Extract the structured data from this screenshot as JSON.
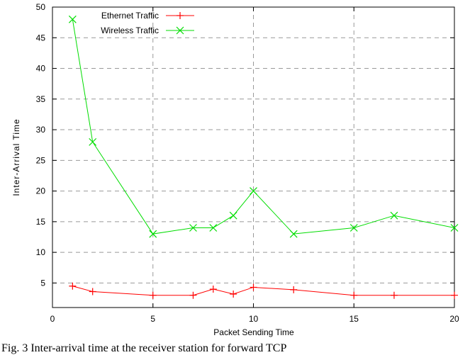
{
  "chart_data": {
    "type": "line",
    "xlabel": "Packet Sending Time",
    "ylabel": "Inter-Arrival Time",
    "xlim": [
      0,
      20
    ],
    "ylim": [
      1,
      50
    ],
    "xticks": [
      0,
      5,
      10,
      15,
      20
    ],
    "yticks": [
      5,
      10,
      15,
      20,
      25,
      30,
      35,
      40,
      45,
      50
    ],
    "grid": true,
    "legend_position": "top-left",
    "series": [
      {
        "name": "Ethernet Traffic",
        "color": "#ff0000",
        "marker": "plus",
        "x": [
          1,
          2,
          5,
          7,
          8,
          9,
          10,
          12,
          15,
          17,
          20
        ],
        "y": [
          4.5,
          3.6,
          3.0,
          3.0,
          4.0,
          3.2,
          4.3,
          3.9,
          3.0,
          3.0,
          3.0
        ]
      },
      {
        "name": "Wireless Traffic",
        "color": "#00dd00",
        "marker": "cross",
        "x": [
          1,
          2,
          5,
          7,
          8,
          9,
          10,
          12,
          15,
          17,
          20
        ],
        "y": [
          48,
          28,
          13,
          14,
          14,
          16,
          20,
          13,
          14,
          16,
          14
        ]
      }
    ]
  },
  "caption": "Fig. 3 Inter-arrival time at the receiver station for forward TCP"
}
